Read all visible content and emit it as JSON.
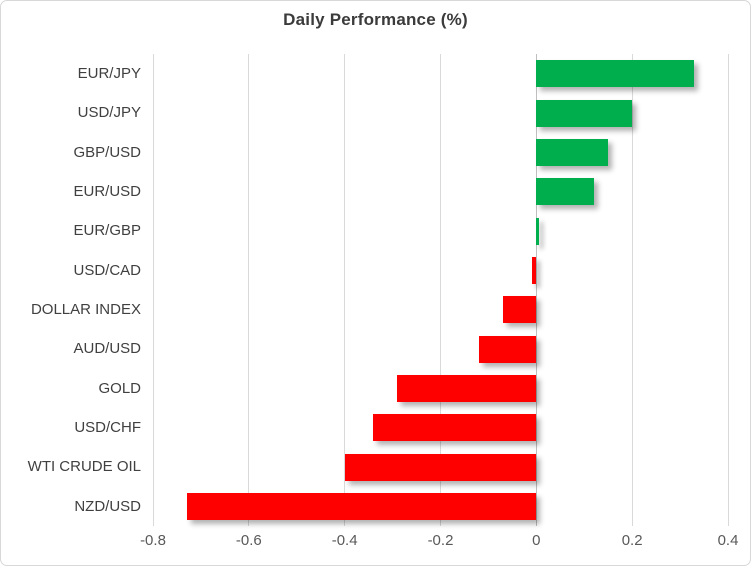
{
  "chart_data": {
    "type": "bar",
    "orientation": "horizontal",
    "title": "Daily Performance (%)",
    "categories": [
      "EUR/JPY",
      "USD/JPY",
      "GBP/USD",
      "EUR/USD",
      "EUR/GBP",
      "USD/CAD",
      "DOLLAR INDEX",
      "AUD/USD",
      "GOLD",
      "USD/CHF",
      "WTI CRUDE OIL",
      "NZD/USD"
    ],
    "values": [
      0.33,
      0.2,
      0.15,
      0.12,
      0.005,
      -0.01,
      -0.07,
      -0.12,
      -0.29,
      -0.34,
      -0.4,
      -0.73
    ],
    "xlim": [
      -0.8,
      0.4
    ],
    "xticks": [
      -0.8,
      -0.6,
      -0.4,
      -0.2,
      0,
      0.2,
      0.4
    ],
    "xtick_labels": [
      "-0.8",
      "-0.6",
      "-0.4",
      "-0.2",
      "0",
      "0.2",
      "0.4"
    ],
    "xlabel": "",
    "ylabel": "",
    "grid": true,
    "legend": "none",
    "positive_color": "#00ae4e",
    "negative_color": "#fe0000",
    "gridline_color": "#d9d9d9",
    "zero_line_color": "#bfbfbf"
  }
}
